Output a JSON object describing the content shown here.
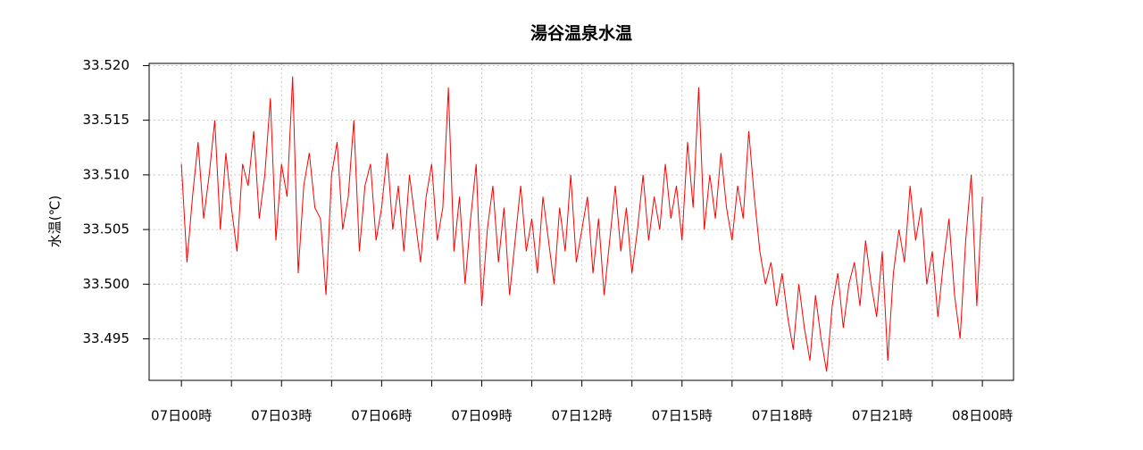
{
  "chart_data": {
    "type": "line",
    "title": "湯谷温泉水温",
    "y_label": "水温(℃)",
    "x": [
      0,
      10,
      20,
      30,
      40,
      50,
      60,
      70,
      80,
      90,
      100,
      110,
      120,
      130,
      140,
      150,
      160,
      170,
      180,
      190,
      200,
      210,
      220,
      230,
      240,
      250,
      260,
      270,
      280,
      290,
      300,
      310,
      320,
      330,
      340,
      350,
      360,
      370,
      380,
      390,
      400,
      410,
      420,
      430,
      440,
      450,
      460,
      470,
      480,
      490,
      500,
      510,
      520,
      530,
      540,
      550,
      560,
      570,
      580,
      590,
      600,
      610,
      620,
      630,
      640,
      650,
      660,
      670,
      680,
      690,
      700,
      710,
      720,
      730,
      740,
      750,
      760,
      770,
      780,
      790,
      800,
      810,
      820,
      830,
      840,
      850,
      860,
      870,
      880,
      890,
      900,
      910,
      920,
      930,
      940,
      950,
      960,
      970,
      980,
      990,
      1000,
      1010,
      1020,
      1030,
      1040,
      1050,
      1060,
      1070,
      1080,
      1090,
      1100,
      1110,
      1120,
      1130,
      1140,
      1150,
      1160,
      1170,
      1180,
      1190,
      1200,
      1210,
      1220,
      1230,
      1240,
      1250,
      1260,
      1270,
      1280,
      1290,
      1300,
      1310,
      1320,
      1330,
      1340,
      1350,
      1360,
      1370,
      1380,
      1390,
      1400,
      1410,
      1420,
      1430,
      1440
    ],
    "series": [
      {
        "name": "水温",
        "color": "#ff0000",
        "values": [
          33.511,
          33.502,
          33.508,
          33.513,
          33.506,
          33.51,
          33.515,
          33.505,
          33.512,
          33.507,
          33.503,
          33.511,
          33.509,
          33.514,
          33.506,
          33.51,
          33.517,
          33.504,
          33.511,
          33.508,
          33.519,
          33.501,
          33.509,
          33.512,
          33.507,
          33.506,
          33.499,
          33.51,
          33.513,
          33.505,
          33.508,
          33.515,
          33.503,
          33.509,
          33.511,
          33.504,
          33.507,
          33.512,
          33.505,
          33.509,
          33.503,
          33.51,
          33.506,
          33.502,
          33.508,
          33.511,
          33.504,
          33.507,
          33.518,
          33.503,
          33.508,
          33.5,
          33.506,
          33.511,
          33.498,
          33.505,
          33.509,
          33.502,
          33.507,
          33.499,
          33.504,
          33.509,
          33.503,
          33.506,
          33.501,
          33.508,
          33.504,
          33.5,
          33.507,
          33.503,
          33.51,
          33.502,
          33.505,
          33.508,
          33.501,
          33.506,
          33.499,
          33.504,
          33.509,
          33.503,
          33.507,
          33.501,
          33.505,
          33.51,
          33.504,
          33.508,
          33.505,
          33.511,
          33.506,
          33.509,
          33.504,
          33.513,
          33.507,
          33.518,
          33.505,
          33.51,
          33.506,
          33.512,
          33.507,
          33.504,
          33.509,
          33.506,
          33.514,
          33.508,
          33.503,
          33.5,
          33.502,
          33.498,
          33.501,
          33.497,
          33.494,
          33.5,
          33.496,
          33.493,
          33.499,
          33.495,
          33.492,
          33.498,
          33.501,
          33.496,
          33.5,
          33.502,
          33.498,
          33.504,
          33.5,
          33.497,
          33.503,
          33.493,
          33.501,
          33.505,
          33.502,
          33.509,
          33.504,
          33.507,
          33.5,
          33.503,
          33.497,
          33.502,
          33.506,
          33.499,
          33.495,
          33.504,
          33.51,
          33.498,
          33.508
        ]
      }
    ],
    "xlim": [
      -58,
      1496
    ],
    "xticks": [
      {
        "value": 0,
        "label": "07日00時"
      },
      {
        "value": 180,
        "label": "07日03時"
      },
      {
        "value": 360,
        "label": "07日06時"
      },
      {
        "value": 540,
        "label": "07日09時"
      },
      {
        "value": 720,
        "label": "07日12時"
      },
      {
        "value": 900,
        "label": "07日15時"
      },
      {
        "value": 1080,
        "label": "07日18時"
      },
      {
        "value": 1260,
        "label": "07日21時"
      },
      {
        "value": 1440,
        "label": "08日00時"
      }
    ],
    "xminor_ticks": [
      90,
      270,
      450,
      630,
      810,
      990,
      1170,
      1350
    ],
    "ylim": [
      33.4912,
      33.5202
    ],
    "yticks": [
      {
        "value": 33.495,
        "label": "33.495"
      },
      {
        "value": 33.5,
        "label": "33.500"
      },
      {
        "value": 33.505,
        "label": "33.505"
      },
      {
        "value": 33.51,
        "label": "33.510"
      },
      {
        "value": 33.515,
        "label": "33.515"
      },
      {
        "value": 33.52,
        "label": "33.520"
      }
    ],
    "grid": true
  }
}
